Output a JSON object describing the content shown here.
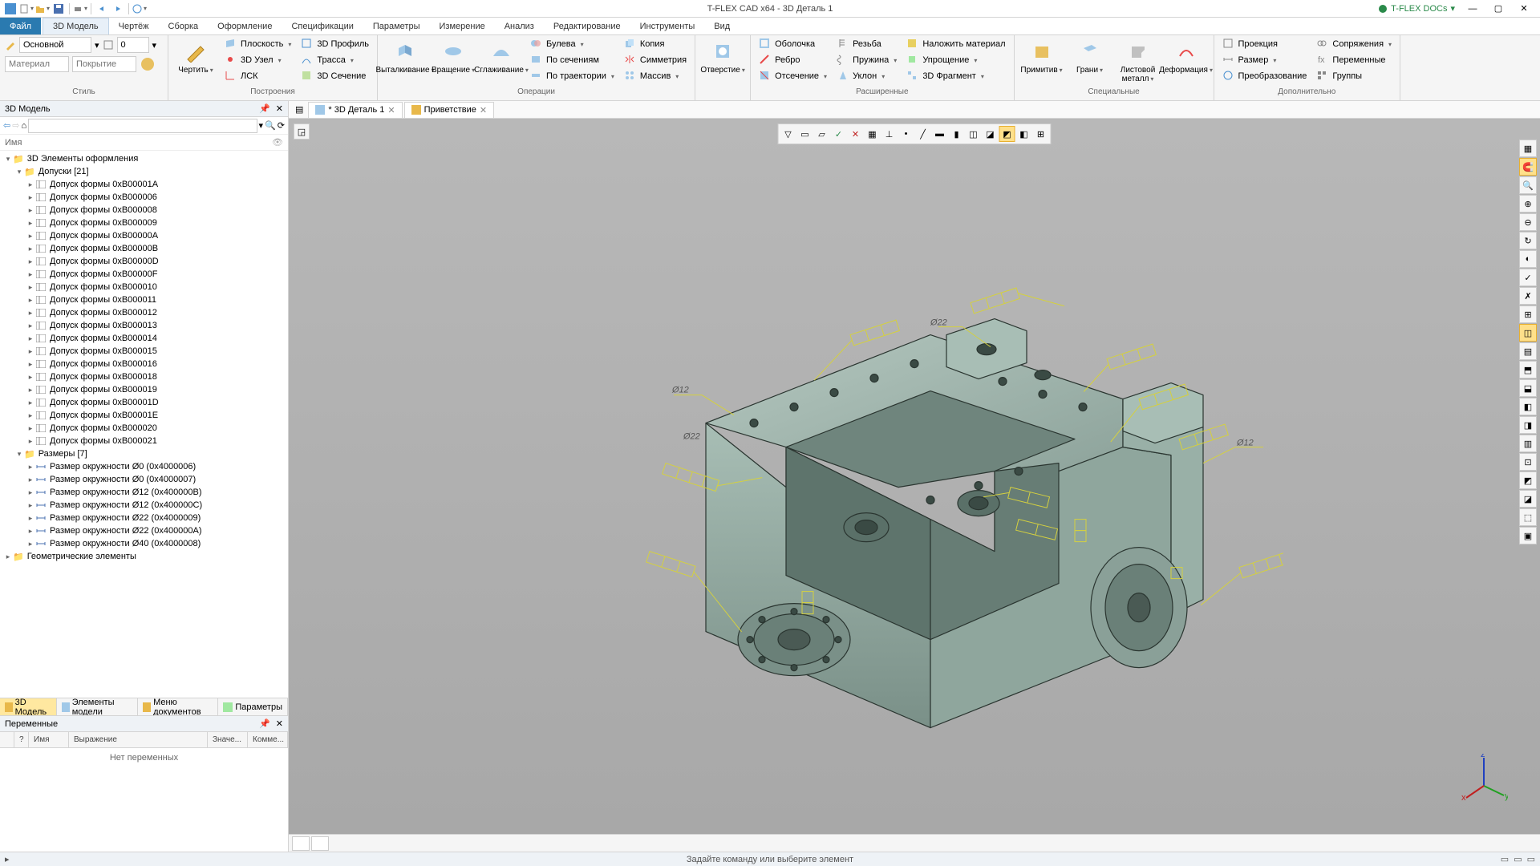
{
  "app": {
    "title": "T-FLEX CAD x64 - 3D Деталь 1",
    "docs_menu": "T-FLEX DOCs"
  },
  "ribbon_tabs": {
    "file": "Файл",
    "model": "3D Модель",
    "drawing": "Чертёж",
    "assembly": "Сборка",
    "format": "Оформление",
    "spec": "Спецификации",
    "params": "Параметры",
    "measure": "Измерение",
    "analysis": "Анализ",
    "edit": "Редактирование",
    "tools": "Инструменты",
    "view": "Вид"
  },
  "ribbon": {
    "style": {
      "label": "Стиль",
      "main": "Основной",
      "zero": "0",
      "material": "Материал",
      "coating": "Покрытие"
    },
    "build": {
      "label": "Построения",
      "draw": "Чертить",
      "plane": "Плоскость",
      "node": "3D Узел",
      "lcs": "ЛСК",
      "profile": "3D Профиль",
      "path": "Трасса",
      "section": "3D Сечение"
    },
    "ops": {
      "label": "Операции",
      "extrude": "Выталкивание",
      "revolve": "Вращение",
      "smooth": "Сглаживание",
      "bool": "Булева",
      "bysec": "По сечениям",
      "bypath": "По траектории",
      "copy": "Копия",
      "sym": "Симметрия",
      "array": "Массив"
    },
    "hole": {
      "hole": "Отверстие"
    },
    "ext": {
      "label": "Расширенные",
      "shell": "Оболочка",
      "edge": "Ребро",
      "cut": "Отсечение",
      "thread": "Резьба",
      "spring": "Пружина",
      "draft": "Уклон",
      "overlay": "Наложить материал",
      "simplify": "Упрощение",
      "frag": "3D Фрагмент"
    },
    "spec": {
      "label": "Специальные",
      "prim": "Примитив",
      "faces": "Грани",
      "sheet": "Листовой металл",
      "deform": "Деформация"
    },
    "extra": {
      "label": "Дополнительно",
      "proj": "Проекция",
      "dim": "Размер",
      "xform": "Преобразование",
      "mates": "Сопряжения",
      "vars": "Переменные",
      "groups": "Группы"
    }
  },
  "model_panel": {
    "title": "3D Модель",
    "name_col": "Имя",
    "root": "3D Элементы оформления",
    "tolerances": "Допуски [21]",
    "tol_items": [
      "Допуск формы 0xB00001A",
      "Допуск формы 0xB000006",
      "Допуск формы 0xB000008",
      "Допуск формы 0xB000009",
      "Допуск формы 0xB00000A",
      "Допуск формы 0xB00000B",
      "Допуск формы 0xB00000D",
      "Допуск формы 0xB00000F",
      "Допуск формы 0xB000010",
      "Допуск формы 0xB000011",
      "Допуск формы 0xB000012",
      "Допуск формы 0xB000013",
      "Допуск формы 0xB000014",
      "Допуск формы 0xB000015",
      "Допуск формы 0xB000016",
      "Допуск формы 0xB000018",
      "Допуск формы 0xB000019",
      "Допуск формы 0xB00001D",
      "Допуск формы 0xB00001E",
      "Допуск формы 0xB000020",
      "Допуск формы 0xB000021"
    ],
    "dims": "Размеры [7]",
    "dim_items": [
      "Размер окружности Ø0 (0x4000006)",
      "Размер окружности Ø0 (0x4000007)",
      "Размер окружности Ø12 (0x400000B)",
      "Размер окружности Ø12 (0x400000C)",
      "Размер окружности Ø22 (0x4000009)",
      "Размер окружности Ø22 (0x400000A)",
      "Размер окружности Ø40 (0x4000008)"
    ],
    "geom": "Геометрические элементы",
    "tabs": {
      "model": "3D Модель",
      "elems": "Элементы модели",
      "docs": "Меню документов",
      "params": "Параметры"
    }
  },
  "vars_panel": {
    "title": "Переменные",
    "cols": {
      "q": "?",
      "name": "Имя",
      "expr": "Выражение",
      "val": "Значе...",
      "comm": "Комме..."
    },
    "empty": "Нет переменных"
  },
  "doc_tabs": {
    "part": "* 3D Деталь 1",
    "welcome": "Приветствие"
  },
  "status": {
    "hint": "Задайте команду или выберите элемент"
  },
  "viewport": {
    "bg_top": "#b8b8b8",
    "bg_bot": "#a8a8a8",
    "part_fill": "#9db5ac",
    "part_stroke": "#2a3530",
    "part_dark": "#7a9289",
    "annot_color": "#d4d040",
    "dim_labels": [
      "Ø12",
      "Ø22",
      "Ø22",
      "Ø12"
    ],
    "axis": {
      "x": "#c02020",
      "y": "#20a020",
      "z": "#2040c0"
    }
  }
}
